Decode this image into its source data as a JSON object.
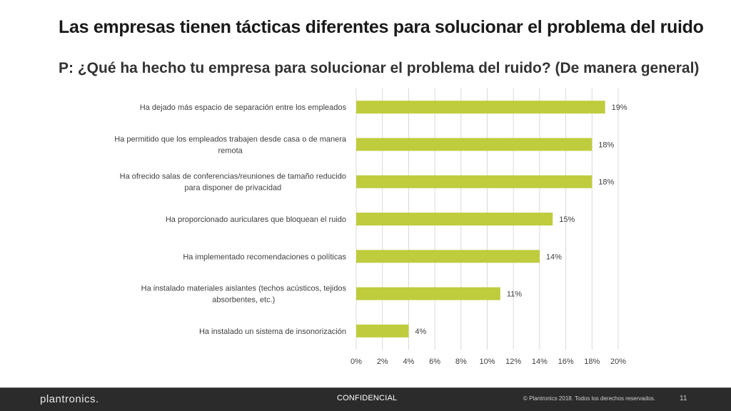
{
  "slide": {
    "title": "Las empresas tienen tácticas diferentes para solucionar el problema del ruido",
    "subtitle": "P: ¿Qué ha hecho tu empresa para solucionar el problema del ruido? (De manera general)"
  },
  "footer": {
    "logo": "plantronics",
    "logo_suffix": ".",
    "confidential": "CONFIDENCIAL",
    "copyright": "© Plantronics 2018. Todos los derechos reservados.",
    "page_number": "11"
  },
  "colors": {
    "bar": "#bfcc3d",
    "grid": "#d9d9d9",
    "text": "#404040",
    "footer_bg": "#2b2b2b"
  },
  "chart_data": {
    "type": "bar",
    "orientation": "horizontal",
    "categories": [
      [
        "Ha dejado más espacio de separación entre los empleados"
      ],
      [
        "Ha permitido que los empleados trabajen desde casa o de manera",
        "remota"
      ],
      [
        "Ha ofrecido salas de conferencias/reuniones de tamaño reducido",
        "para disponer de privacidad"
      ],
      [
        "Ha proporcionado auriculares que bloquean el ruido"
      ],
      [
        "Ha implementado recomendaciones o políticas"
      ],
      [
        "Ha instalado materiales aislantes (techos acústicos, tejidos",
        "absorbentes, etc.)"
      ],
      [
        "Ha instalado un sistema de insonorización"
      ]
    ],
    "values": [
      19,
      18,
      18,
      15,
      14,
      11,
      4
    ],
    "value_labels": [
      "19%",
      "18%",
      "18%",
      "15%",
      "14%",
      "11%",
      "4%"
    ],
    "xlim": [
      0,
      20
    ],
    "xticks": [
      0,
      2,
      4,
      6,
      8,
      10,
      12,
      14,
      16,
      18,
      20
    ],
    "xtick_labels": [
      "0%",
      "2%",
      "4%",
      "6%",
      "8%",
      "10%",
      "12%",
      "14%",
      "16%",
      "18%",
      "20%"
    ],
    "grid": true,
    "legend": "none"
  }
}
